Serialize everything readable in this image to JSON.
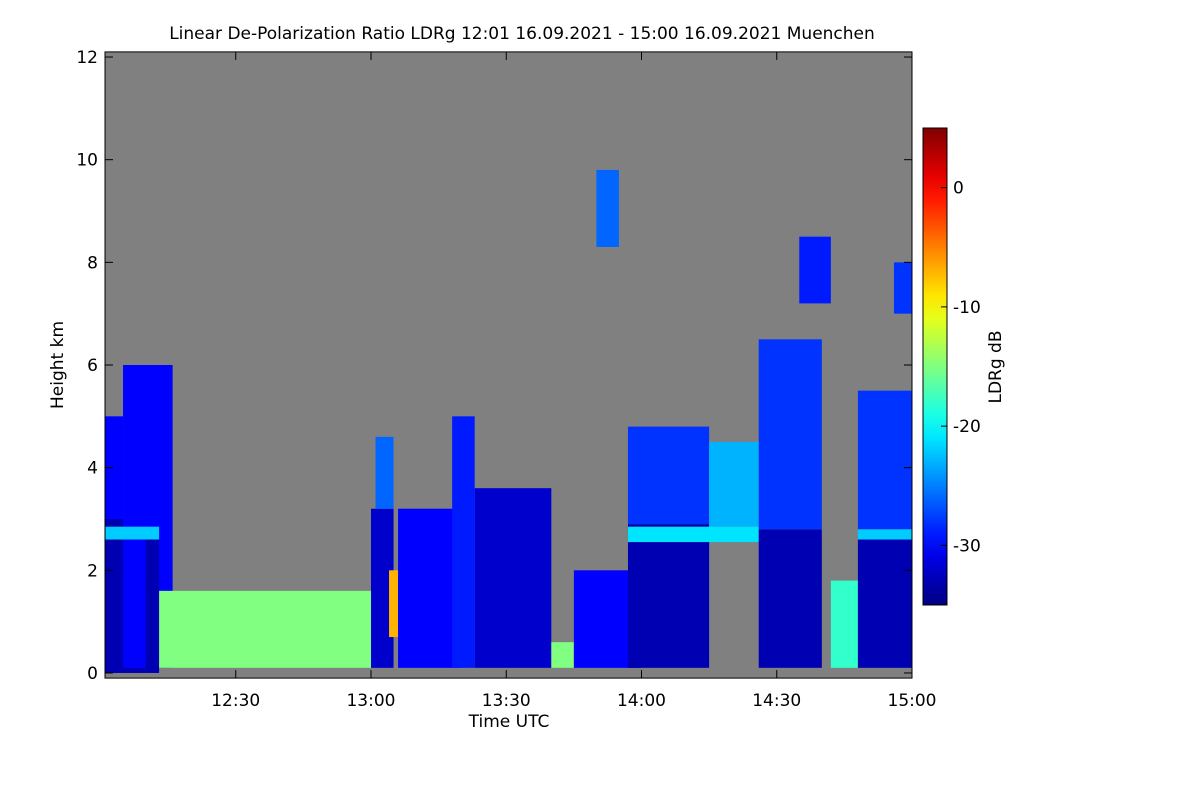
{
  "chart_data": {
    "type": "heatmap",
    "title": "Linear De-Polarization Ratio LDRg   12:01 16.09.2021 - 15:00 16.09.2021 Muenchen",
    "x_label": "Time UTC",
    "y_label": "Height km",
    "colorbar_label": "LDRg dB",
    "colormap": "jet",
    "background": "#808080",
    "xlim": [
      1,
      180
    ],
    "xticks": [
      {
        "value": 30,
        "label": "12:30"
      },
      {
        "value": 60,
        "label": "13:00"
      },
      {
        "value": 90,
        "label": "13:30"
      },
      {
        "value": 120,
        "label": "14:00"
      },
      {
        "value": 150,
        "label": "14:30"
      },
      {
        "value": 180,
        "label": "15:00"
      }
    ],
    "ylim": [
      -0.1,
      12.1
    ],
    "yticks": [
      0,
      2,
      4,
      6,
      8,
      10,
      12
    ],
    "clim": [
      -35,
      5
    ],
    "cticks": [
      0,
      -10,
      -20,
      -30
    ],
    "regions": [
      {
        "t0": 1,
        "t1": 10,
        "h0": 0,
        "h1": 3,
        "v": -33
      },
      {
        "t0": 1,
        "t1": 5,
        "h0": 3,
        "h1": 5,
        "v": -30
      },
      {
        "t0": 5,
        "t1": 16,
        "h0": 0.1,
        "h1": 6,
        "v": -30
      },
      {
        "t0": 1,
        "t1": 13,
        "h0": 2.6,
        "h1": 2.85,
        "v": -22
      },
      {
        "t0": 10,
        "t1": 13,
        "h0": 0,
        "h1": 2.6,
        "v": -33
      },
      {
        "t0": 13,
        "t1": 60,
        "h0": 0.1,
        "h1": 1.6,
        "v": -15
      },
      {
        "t0": 60,
        "t1": 65,
        "h0": 0.1,
        "h1": 3.2,
        "v": -32
      },
      {
        "t0": 61,
        "t1": 65,
        "h0": 3.2,
        "h1": 4.6,
        "v": -26
      },
      {
        "t0": 64,
        "t1": 66,
        "h0": 0.7,
        "h1": 2,
        "v": -7
      },
      {
        "t0": 66,
        "t1": 80,
        "h0": 0.1,
        "h1": 3.2,
        "v": -30
      },
      {
        "t0": 78,
        "t1": 83,
        "h0": 0.1,
        "h1": 5,
        "v": -29
      },
      {
        "t0": 83,
        "t1": 100,
        "h0": 0.1,
        "h1": 3.6,
        "v": -32
      },
      {
        "t0": 100,
        "t1": 105,
        "h0": 0.1,
        "h1": 0.6,
        "v": -15
      },
      {
        "t0": 105,
        "t1": 120,
        "h0": 0.1,
        "h1": 2,
        "v": -30
      },
      {
        "t0": 110,
        "t1": 115,
        "h0": 8.3,
        "h1": 9.8,
        "v": -26
      },
      {
        "t0": 117,
        "t1": 135,
        "h0": 0.1,
        "h1": 2.9,
        "v": -33
      },
      {
        "t0": 117,
        "t1": 135,
        "h0": 2.9,
        "h1": 4.8,
        "v": -28
      },
      {
        "t0": 135,
        "t1": 146,
        "h0": 2.85,
        "h1": 4.5,
        "v": -23
      },
      {
        "t0": 117,
        "t1": 146,
        "h0": 2.55,
        "h1": 2.85,
        "v": -21
      },
      {
        "t0": 146,
        "t1": 160,
        "h0": 0.1,
        "h1": 2.8,
        "v": -33
      },
      {
        "t0": 146,
        "t1": 160,
        "h0": 2.8,
        "h1": 6.5,
        "v": -28
      },
      {
        "t0": 155,
        "t1": 162,
        "h0": 7.2,
        "h1": 8.5,
        "v": -29
      },
      {
        "t0": 162,
        "t1": 168,
        "h0": 0.1,
        "h1": 1.8,
        "v": -18
      },
      {
        "t0": 168,
        "t1": 180,
        "h0": 0.1,
        "h1": 2.6,
        "v": -33
      },
      {
        "t0": 168,
        "t1": 180,
        "h0": 2.6,
        "h1": 2.8,
        "v": -22
      },
      {
        "t0": 168,
        "t1": 180,
        "h0": 2.8,
        "h1": 5.5,
        "v": -28
      },
      {
        "t0": 176,
        "t1": 180,
        "h0": 7,
        "h1": 8,
        "v": -28
      }
    ]
  }
}
